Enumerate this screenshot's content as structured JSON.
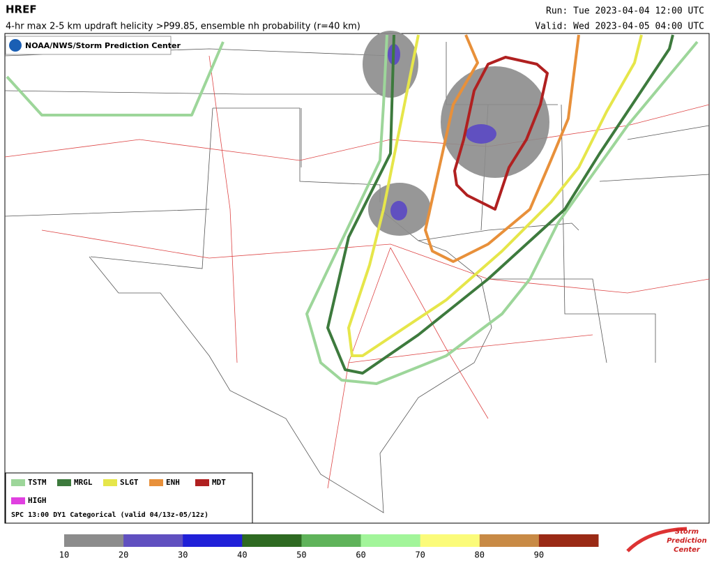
{
  "header": {
    "title": "HREF",
    "subtitle": "4-hr max 2-5 km updraft helicity >P99.85, ensemble nh probability (r=40 km)",
    "run": "Run: Tue 2023-04-04 12:00 UTC",
    "valid": "Valid: Wed 2023-04-05 04:00 UTC"
  },
  "credit": "NOAA/NWS/Storm Prediction Center",
  "legend": {
    "items": [
      {
        "name": "TSTM",
        "color": "#9dd69a"
      },
      {
        "name": "MRGL",
        "color": "#3d7a3d"
      },
      {
        "name": "SLGT",
        "color": "#e6e64a"
      },
      {
        "name": "ENH",
        "color": "#e8903a"
      },
      {
        "name": "MDT",
        "color": "#b02020"
      },
      {
        "name": "HIGH",
        "color": "#e040e0"
      }
    ],
    "note": "SPC 13:00 DY1 Categorical (valid 04/13z-05/12z)"
  },
  "colorbar": {
    "colors": [
      "#8c8c8c",
      "#6050c0",
      "#2020d8",
      "#2e6a22",
      "#5fb35a",
      "#a2f59a",
      "#fbfb7a",
      "#c88a45",
      "#9a2a15"
    ],
    "labels": [
      10,
      20,
      30,
      40,
      50,
      60,
      70,
      80,
      90
    ]
  },
  "logo": {
    "line1": "Storm",
    "line2": "Prediction",
    "line3": "Center"
  }
}
